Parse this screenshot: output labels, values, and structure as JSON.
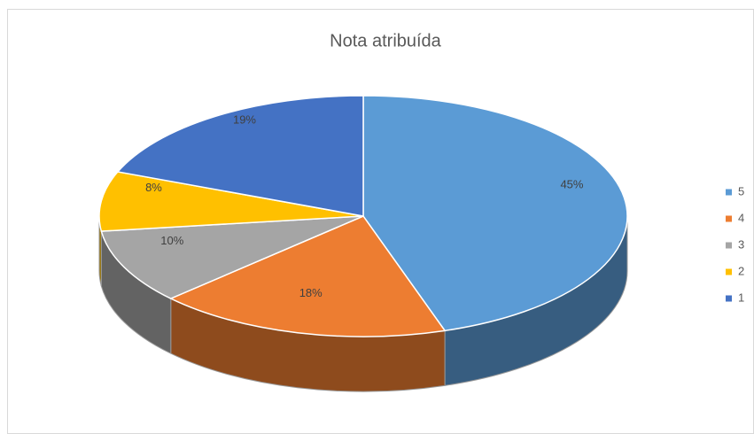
{
  "chart_data": {
    "type": "pie",
    "title": "Nota atribuída",
    "categories": [
      "5",
      "4",
      "3",
      "2",
      "1"
    ],
    "values": [
      45,
      18,
      10,
      8,
      19
    ],
    "value_labels": [
      "45%",
      "18%",
      "10%",
      "8%",
      "19%"
    ],
    "colors": [
      "#5b9bd5",
      "#ed7d31",
      "#a5a5a5",
      "#ffc000",
      "#4472c4"
    ],
    "legend": "right"
  }
}
